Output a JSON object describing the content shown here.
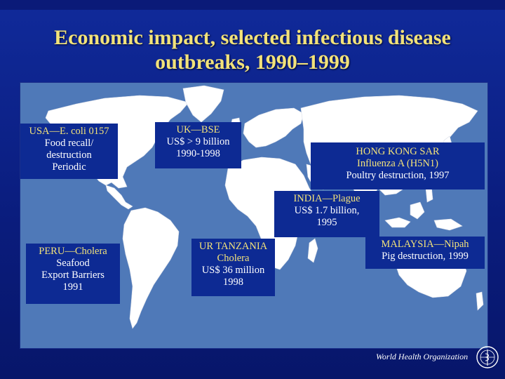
{
  "title": {
    "line1": "Economic impact, selected infectious disease",
    "line2": "outbreaks, 1990–1999"
  },
  "map": {
    "ocean_color": "#4f79b8",
    "land_color": "#ffffff",
    "box_color": "#0d2a93",
    "heading_color": "#f2e27a"
  },
  "outbreaks": [
    {
      "heading": "USA—E. coli 0157",
      "lines": [
        "Food recall/",
        "destruction",
        "Periodic"
      ]
    },
    {
      "heading": "UK—BSE",
      "lines": [
        "US$ > 9 billion",
        "1990-1998"
      ]
    },
    {
      "heading": "HONG KONG SAR",
      "lines": [
        "Influenza A (H5N1)",
        "Poultry destruction, 1997"
      ]
    },
    {
      "heading": "INDIA—Plague",
      "lines": [
        "US$ 1.7 billion,",
        "1995"
      ]
    },
    {
      "heading": "PERU—Cholera",
      "lines": [
        "Seafood",
        "Export Barriers",
        "1991"
      ]
    },
    {
      "heading": "UR TANZANIA",
      "lines": [
        "Cholera",
        "US$ 36 million",
        "1998"
      ]
    },
    {
      "heading": "MALAYSIA—Nipah",
      "lines": [
        "Pig destruction, 1999"
      ]
    }
  ],
  "footer": {
    "organization": "World Health Organization",
    "emblem_icon": "who-emblem-icon"
  }
}
